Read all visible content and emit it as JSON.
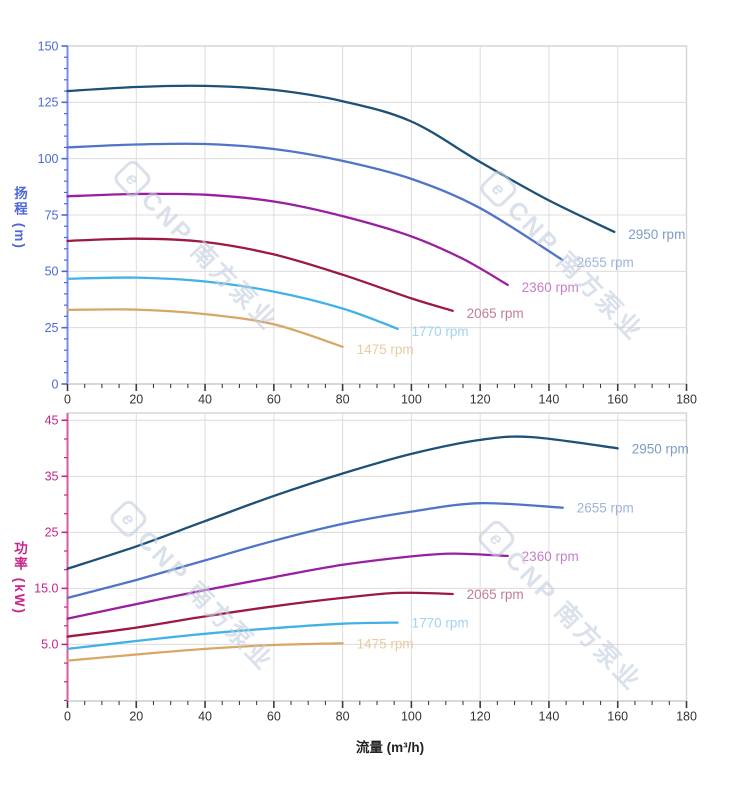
{
  "watermark": {
    "logo_letter": "e",
    "text": "CNP 南方泵业"
  },
  "chart_data": [
    {
      "id": "head",
      "type": "line",
      "title": "",
      "ylabel": "扬程 (m)",
      "xlabel": "",
      "xlim": [
        0,
        180
      ],
      "ylim": [
        0,
        150
      ],
      "grid": true,
      "legend_position": "inline-end-labels",
      "axis_color": "#4d68d8",
      "x_ticks": [
        0,
        20,
        40,
        60,
        80,
        100,
        120,
        140,
        160,
        180
      ],
      "x_minor_step": 5,
      "y_minor_step": 5,
      "y_ticks": [
        {
          "value": 150,
          "label": "150"
        },
        {
          "value": 125,
          "label": "125"
        },
        {
          "value": 100,
          "label": "100"
        },
        {
          "value": 75,
          "label": "75"
        },
        {
          "value": 50,
          "label": "50"
        },
        {
          "value": 25,
          "label": "25"
        },
        {
          "value": 0,
          "label": "0"
        }
      ],
      "series": [
        {
          "name": "2950 rpm",
          "color": "#1d5178",
          "label_color": "#7e9cc4",
          "points": [
            [
              0,
              130
            ],
            [
              20,
              131.8
            ],
            [
              40,
              132.3
            ],
            [
              60,
              130.5
            ],
            [
              80,
              125.5
            ],
            [
              100,
              116.5
            ],
            [
              120,
              98.5
            ],
            [
              140,
              81.5
            ],
            [
              159,
              67.5
            ]
          ]
        },
        {
          "name": "2655 rpm",
          "color": "#4f74c8",
          "label_color": "#9fb3dd",
          "points": [
            [
              0,
              105
            ],
            [
              20,
              106.3
            ],
            [
              40,
              106.5
            ],
            [
              60,
              104.3
            ],
            [
              80,
              99
            ],
            [
              100,
              91
            ],
            [
              120,
              78
            ],
            [
              144,
              55
            ]
          ]
        },
        {
          "name": "2360 rpm",
          "color": "#9a1fa0",
          "label_color": "#c77fc8",
          "points": [
            [
              0,
              83.3
            ],
            [
              20,
              84.3
            ],
            [
              40,
              84
            ],
            [
              60,
              81
            ],
            [
              80,
              74.5
            ],
            [
              100,
              65.5
            ],
            [
              115,
              55.5
            ],
            [
              128,
              44
            ]
          ]
        },
        {
          "name": "2065 rpm",
          "color": "#9c1a42",
          "label_color": "#c27e93",
          "points": [
            [
              0,
              63.5
            ],
            [
              20,
              64.5
            ],
            [
              40,
              63
            ],
            [
              60,
              57.5
            ],
            [
              80,
              48.5
            ],
            [
              100,
              38
            ],
            [
              112,
              32.5
            ]
          ]
        },
        {
          "name": "1770 rpm",
          "color": "#41b1e6",
          "label_color": "#9ed4f1",
          "points": [
            [
              0,
              46.7
            ],
            [
              20,
              47.2
            ],
            [
              40,
              45.5
            ],
            [
              60,
              41
            ],
            [
              80,
              33.5
            ],
            [
              96,
              24.5
            ]
          ]
        },
        {
          "name": "1475 rpm",
          "color": "#d9a765",
          "label_color": "#e8cba2",
          "points": [
            [
              0,
              32.9
            ],
            [
              20,
              33
            ],
            [
              40,
              31
            ],
            [
              60,
              26.5
            ],
            [
              80,
              16.5
            ]
          ]
        }
      ]
    },
    {
      "id": "power",
      "type": "line",
      "title": "",
      "ylabel": "功率 (kW)",
      "xlabel": "流量 (m³/h)",
      "xlim": [
        0,
        180
      ],
      "ylim": [
        -5.1,
        46.3
      ],
      "grid": true,
      "legend_position": "inline-end-labels",
      "axis_color": "#c5268a",
      "x_ticks": [
        0,
        20,
        40,
        60,
        80,
        100,
        120,
        140,
        160,
        180
      ],
      "x_minor_step": 5,
      "y_minor_step": 3.3333,
      "y_ticks": [
        {
          "value": 45,
          "label": "45"
        },
        {
          "value": 35,
          "label": "35"
        },
        {
          "value": 25,
          "label": "25"
        },
        {
          "value": 15,
          "label": "15.0"
        },
        {
          "value": 5,
          "label": "5.0"
        }
      ],
      "series": [
        {
          "name": "2950 rpm",
          "color": "#1d5178",
          "label_color": "#7e9cc4",
          "points": [
            [
              0,
              18.5
            ],
            [
              20,
              22.5
            ],
            [
              40,
              27
            ],
            [
              60,
              31.5
            ],
            [
              80,
              35.5
            ],
            [
              100,
              39
            ],
            [
              120,
              41.5
            ],
            [
              135,
              42
            ],
            [
              160,
              40
            ]
          ]
        },
        {
          "name": "2655 rpm",
          "color": "#4f74c8",
          "label_color": "#9fb3dd",
          "points": [
            [
              0,
              13.3
            ],
            [
              20,
              16.5
            ],
            [
              40,
              20
            ],
            [
              60,
              23.5
            ],
            [
              80,
              26.5
            ],
            [
              100,
              28.7
            ],
            [
              120,
              30.2
            ],
            [
              144,
              29.4
            ]
          ]
        },
        {
          "name": "2360 rpm",
          "color": "#9a1fa0",
          "label_color": "#c77fc8",
          "points": [
            [
              0,
              9.6
            ],
            [
              20,
              12.2
            ],
            [
              40,
              14.7
            ],
            [
              60,
              17
            ],
            [
              80,
              19.2
            ],
            [
              100,
              20.7
            ],
            [
              112,
              21.2
            ],
            [
              128,
              20.8
            ]
          ]
        },
        {
          "name": "2065 rpm",
          "color": "#9c1a42",
          "label_color": "#c27e93",
          "points": [
            [
              0,
              6.4
            ],
            [
              20,
              8
            ],
            [
              40,
              10
            ],
            [
              60,
              11.8
            ],
            [
              80,
              13.3
            ],
            [
              96,
              14.2
            ],
            [
              112,
              14
            ]
          ]
        },
        {
          "name": "1770 rpm",
          "color": "#41b1e6",
          "label_color": "#9ed4f1",
          "points": [
            [
              0,
              4.2
            ],
            [
              20,
              5.6
            ],
            [
              40,
              6.9
            ],
            [
              60,
              7.9
            ],
            [
              80,
              8.7
            ],
            [
              96,
              8.9
            ]
          ]
        },
        {
          "name": "1475 rpm",
          "color": "#d9a765",
          "label_color": "#e8cba2",
          "points": [
            [
              0,
              2.1
            ],
            [
              20,
              3.2
            ],
            [
              40,
              4.2
            ],
            [
              60,
              4.9
            ],
            [
              80,
              5.2
            ]
          ]
        }
      ]
    }
  ]
}
